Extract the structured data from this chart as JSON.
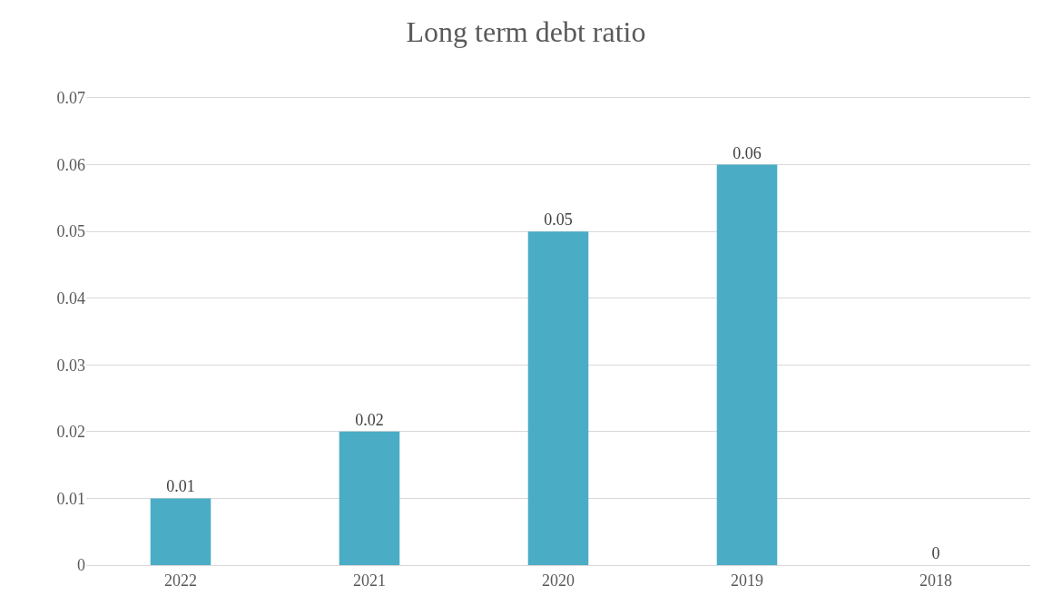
{
  "chart_data": {
    "type": "bar",
    "title": "Long term debt ratio",
    "categories": [
      "2022",
      "2021",
      "2020",
      "2019",
      "2018"
    ],
    "values": [
      0.01,
      0.02,
      0.05,
      0.06,
      0
    ],
    "color": "#4bacc6",
    "ylim": [
      0,
      0.07
    ],
    "yticks": [
      {
        "value": 0,
        "label": "0"
      },
      0.01,
      0.02,
      0.03,
      0.04,
      0.05,
      0.06,
      0.07
    ],
    "grid": "y",
    "data_labels": true
  }
}
